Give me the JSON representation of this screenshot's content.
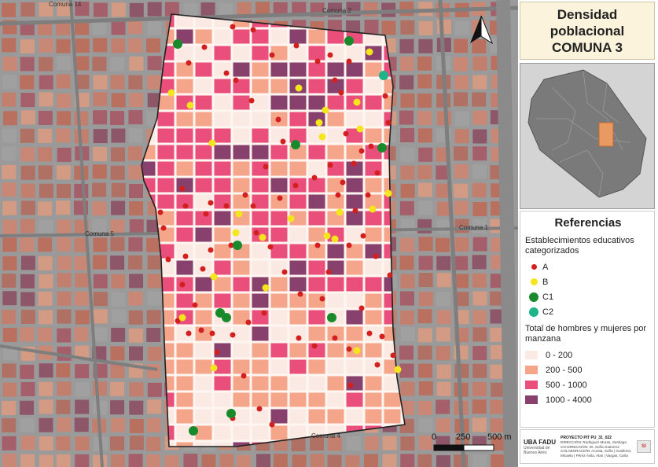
{
  "title": {
    "line1": "Densidad",
    "line2": "poblacional",
    "line3": "COMUNA 3"
  },
  "map_labels": {
    "north": "Comuna 2",
    "northwest": "Comuna 14",
    "west": "Comuna 5",
    "east": "Comuna 1",
    "south": "Comuna 4"
  },
  "scale": {
    "ticks": [
      "0",
      "250",
      "500 m"
    ]
  },
  "legend": {
    "title": "Referencias",
    "schools_heading": "Establecimientos educativos categorizados",
    "schools": [
      {
        "label": "A",
        "color": "#d41f1f",
        "size": 7
      },
      {
        "label": "B",
        "color": "#f5e51c",
        "size": 9
      },
      {
        "label": "C1",
        "color": "#198a2b",
        "size": 12
      },
      {
        "label": "C2",
        "color": "#1fb38a",
        "size": 12
      }
    ],
    "density_heading": "Total de hombres y mujeres por manzana",
    "classes": [
      {
        "label": "0 - 200",
        "color": "#fbeae4"
      },
      {
        "label": "200 - 500",
        "color": "#f4a58a"
      },
      {
        "label": "500 - 1000",
        "color": "#ea4f7c"
      },
      {
        "label": "1000 - 4000",
        "color": "#88406c"
      }
    ]
  },
  "footer": {
    "logo": "UBA FADU",
    "logo_sub": "Universidad de Buenos Aires",
    "project": "PROYECTO PIT PU_31_022",
    "credits_1": "DIRECCIÓN: Rodriguez Muras, Santiago",
    "credits_2": "CO-DIRECCIÓN: Dr. Sofía Gutierrez",
    "credits_3": "COLABORACIÓN: Acosta, Sofía | Gutiérrez,",
    "credits_4": "Micaela | Pérez Ávila, Alan | Vargas, Carla",
    "mark": "SI"
  }
}
